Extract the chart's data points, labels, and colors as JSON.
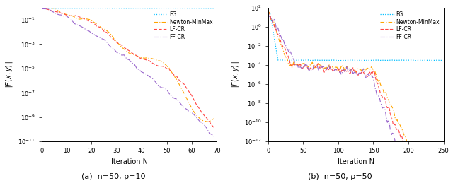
{
  "subplot_a": {
    "xlabel": "Iteration N",
    "ylabel": "$\\|F(x,y)\\|$",
    "xlim": [
      0,
      70
    ],
    "ylim_log": [
      -11,
      0
    ],
    "xticks": [
      0,
      10,
      20,
      30,
      40,
      50,
      60,
      70
    ],
    "n_iters": 70
  },
  "subplot_b": {
    "xlabel": "Iteration N",
    "ylabel": "$\\|F(x,y)\\|$",
    "xlim": [
      0,
      250
    ],
    "ylim_log": [
      -12,
      2
    ],
    "xticks": [
      0,
      50,
      100,
      150,
      200,
      250
    ],
    "n_iters": 250
  },
  "legend_labels": [
    "FG",
    "Newton-MinMax",
    "LF-CR",
    "FF-CR"
  ],
  "colors": {
    "FG": "#00BFFF",
    "Newton-MinMax": "#FFA500",
    "LF-CR": "#FF4444",
    "FF-CR": "#9966CC"
  },
  "caption_a": "(a)  n=50, ρ=10",
  "caption_b": "(b)  n=50, ρ=50"
}
